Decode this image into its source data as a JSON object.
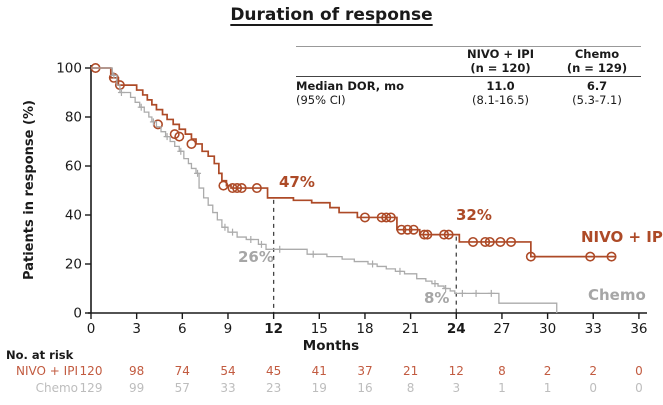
{
  "title": "Duration of response",
  "inset_table": {
    "col_headers": [
      {
        "line1": "NIVO + IPI",
        "line2": "(n = 120)"
      },
      {
        "line1": "Chemo",
        "line2": "(n = 129)"
      }
    ],
    "row_label_line1": "Median DOR, mo",
    "row_label_line2": "(95% CI)",
    "values": [
      {
        "line1": "11.0",
        "line2": "(8.1-16.5)"
      },
      {
        "line1": "6.7",
        "line2": "(5.3-7.1)"
      }
    ]
  },
  "chart_data": {
    "type": "line",
    "subtype": "kaplan-meier-step",
    "title": "Duration of response",
    "xlabel": "Months",
    "ylabel": "Patients in response (%)",
    "xlim": [
      0,
      36
    ],
    "ylim": [
      0,
      100
    ],
    "x_ticks": [
      0,
      3,
      6,
      9,
      12,
      15,
      18,
      21,
      24,
      27,
      30,
      33,
      36
    ],
    "bold_x_ticks": [
      12,
      24
    ],
    "y_ticks": [
      0,
      20,
      40,
      60,
      80,
      100
    ],
    "grid": false,
    "reflines": [
      {
        "month": 12,
        "top_percent": 47
      },
      {
        "month": 24,
        "top_percent": 32
      }
    ],
    "series": [
      {
        "name": "NIVO + IPI",
        "color": "#ad4a27",
        "marker": "circle",
        "width": 1.7,
        "end_month": 34.5,
        "points": [
          [
            0,
            100
          ],
          [
            1.3,
            96
          ],
          [
            1.8,
            93
          ],
          [
            3.0,
            91
          ],
          [
            3.4,
            89
          ],
          [
            3.7,
            87
          ],
          [
            4.0,
            85
          ],
          [
            4.3,
            83
          ],
          [
            4.7,
            81
          ],
          [
            5.0,
            79
          ],
          [
            5.4,
            77
          ],
          [
            5.8,
            75
          ],
          [
            6.2,
            73
          ],
          [
            6.6,
            71
          ],
          [
            6.9,
            69
          ],
          [
            7.3,
            66
          ],
          [
            7.7,
            64
          ],
          [
            8.1,
            61
          ],
          [
            8.4,
            57
          ],
          [
            8.6,
            54
          ],
          [
            8.9,
            52
          ],
          [
            9.2,
            51
          ],
          [
            11.6,
            47
          ],
          [
            13.3,
            46
          ],
          [
            14.5,
            45
          ],
          [
            15.7,
            43
          ],
          [
            16.3,
            41
          ],
          [
            17.5,
            39
          ],
          [
            20.1,
            34
          ],
          [
            21.6,
            32
          ],
          [
            24.2,
            29
          ],
          [
            28.9,
            23
          ]
        ],
        "censors": [
          [
            0.3,
            100
          ],
          [
            1.5,
            96
          ],
          [
            1.9,
            93
          ],
          [
            4.4,
            77
          ],
          [
            5.5,
            73
          ],
          [
            5.8,
            72
          ],
          [
            6.6,
            69
          ],
          [
            8.7,
            52
          ],
          [
            9.3,
            51
          ],
          [
            9.6,
            51
          ],
          [
            9.9,
            51
          ],
          [
            10.9,
            51
          ],
          [
            18.0,
            39
          ],
          [
            19.1,
            39
          ],
          [
            19.4,
            39
          ],
          [
            19.7,
            39
          ],
          [
            20.4,
            34
          ],
          [
            20.8,
            34
          ],
          [
            21.2,
            34
          ],
          [
            21.9,
            32
          ],
          [
            22.1,
            32
          ],
          [
            23.2,
            32
          ],
          [
            23.5,
            32
          ],
          [
            25.1,
            29
          ],
          [
            25.9,
            29
          ],
          [
            26.2,
            29
          ],
          [
            26.9,
            29
          ],
          [
            27.6,
            29
          ],
          [
            28.9,
            23
          ],
          [
            32.8,
            23
          ],
          [
            34.2,
            23
          ]
        ]
      },
      {
        "name": "Chemo",
        "color": "#ababab",
        "marker": "plus",
        "width": 1.3,
        "end_month": 30.6,
        "points": [
          [
            0,
            100
          ],
          [
            1.4,
            97
          ],
          [
            1.7,
            93
          ],
          [
            1.9,
            90
          ],
          [
            2.6,
            88
          ],
          [
            2.9,
            86
          ],
          [
            3.2,
            84
          ],
          [
            3.5,
            82
          ],
          [
            3.8,
            80
          ],
          [
            4.0,
            78
          ],
          [
            4.3,
            76
          ],
          [
            4.6,
            74
          ],
          [
            4.9,
            72
          ],
          [
            5.2,
            70
          ],
          [
            5.5,
            68
          ],
          [
            5.8,
            66
          ],
          [
            6.1,
            63
          ],
          [
            6.4,
            61
          ],
          [
            6.6,
            59
          ],
          [
            6.9,
            57
          ],
          [
            7.1,
            51
          ],
          [
            7.4,
            47
          ],
          [
            7.7,
            44
          ],
          [
            8.0,
            41
          ],
          [
            8.3,
            38
          ],
          [
            8.6,
            35
          ],
          [
            9.0,
            33
          ],
          [
            9.6,
            31
          ],
          [
            10.2,
            30
          ],
          [
            11.0,
            28
          ],
          [
            11.5,
            26
          ],
          [
            14.2,
            24
          ],
          [
            15.5,
            23
          ],
          [
            16.5,
            22
          ],
          [
            17.3,
            21
          ],
          [
            18.2,
            20
          ],
          [
            18.8,
            19
          ],
          [
            19.4,
            18
          ],
          [
            20.0,
            17
          ],
          [
            20.6,
            16
          ],
          [
            21.4,
            14
          ],
          [
            22.0,
            13
          ],
          [
            22.4,
            12
          ],
          [
            22.8,
            11
          ],
          [
            23.2,
            10
          ],
          [
            23.6,
            9
          ],
          [
            23.9,
            8
          ],
          [
            26.8,
            4
          ],
          [
            30.6,
            0
          ]
        ],
        "censors": [
          [
            1.5,
            97
          ],
          [
            2.0,
            90
          ],
          [
            3.3,
            84
          ],
          [
            4.1,
            78
          ],
          [
            5.0,
            72
          ],
          [
            5.9,
            66
          ],
          [
            7.0,
            57
          ],
          [
            8.8,
            35
          ],
          [
            9.3,
            33
          ],
          [
            10.5,
            30
          ],
          [
            11.2,
            28
          ],
          [
            12.4,
            26
          ],
          [
            14.6,
            24
          ],
          [
            18.5,
            20
          ],
          [
            20.3,
            17
          ],
          [
            22.6,
            12
          ],
          [
            23.3,
            10
          ],
          [
            24.4,
            8
          ],
          [
            25.3,
            8
          ],
          [
            26.3,
            8
          ]
        ]
      }
    ],
    "annotations": [
      {
        "id": "nivo-12",
        "text": "47%",
        "color": "#ad4a27"
      },
      {
        "id": "nivo-24",
        "text": "32%",
        "color": "#ad4a27"
      },
      {
        "id": "chemo-12",
        "text": "26%",
        "color": "#a6a6a6"
      },
      {
        "id": "chemo-24",
        "text": "8%",
        "color": "#a6a6a6"
      },
      {
        "id": "series-nivo",
        "text": "NIVO + IPI",
        "color": "#ad4a27"
      },
      {
        "id": "series-chemo",
        "text": "Chemo",
        "color": "#a6a6a6"
      }
    ]
  },
  "risk_table": {
    "title": "No. at risk",
    "rows": [
      {
        "label": "NIVO + IPI",
        "color": "#c25b40",
        "values": [
          "120",
          "98",
          "74",
          "54",
          "45",
          "41",
          "37",
          "21",
          "12",
          "8",
          "2",
          "2",
          "0"
        ]
      },
      {
        "label": "Chemo",
        "color": "#bdbdbd",
        "values": [
          "129",
          "99",
          "57",
          "33",
          "23",
          "19",
          "16",
          "8",
          "3",
          "1",
          "1",
          "0",
          "0"
        ]
      }
    ]
  },
  "colors": {
    "nivo_accent": "#ad4a27",
    "chemo_gray": "#ababab",
    "axis": "#1a1a1a",
    "refline": "#444444"
  }
}
